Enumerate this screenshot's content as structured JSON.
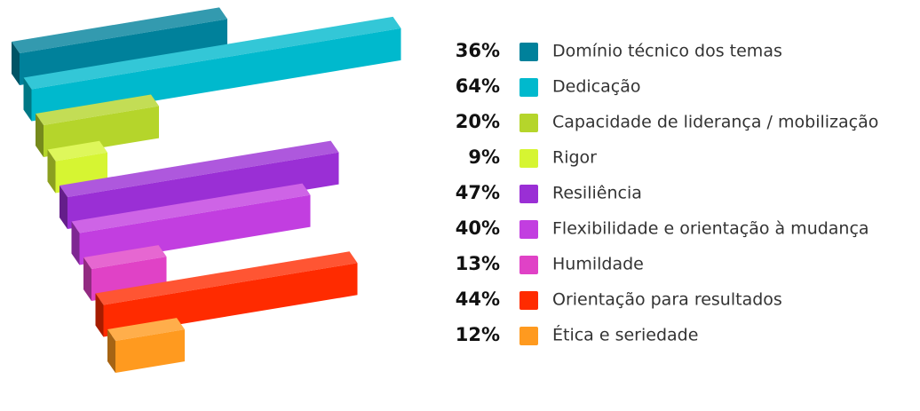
{
  "chart_data": {
    "type": "bar",
    "categories": [
      "Domínio técnico dos temas",
      "Dedicação",
      "Capacidade de liderança / mobilização",
      "Rigor",
      "Resiliência",
      "Flexibilidade e orientação à mudança",
      "Humildade",
      "Orientação para resultados",
      "Ética e seriedade"
    ],
    "values": [
      36,
      64,
      20,
      9,
      47,
      40,
      13,
      44,
      12
    ],
    "value_labels": [
      "36%",
      "64%",
      "20%",
      "9%",
      "47%",
      "40%",
      "13%",
      "44%",
      "12%"
    ],
    "colors": [
      "#00819b",
      "#00b9cd",
      "#b5d52b",
      "#d6f532",
      "#9a2fd5",
      "#c23ee0",
      "#e042c6",
      "#ff2b00",
      "#ff9a1f"
    ]
  }
}
